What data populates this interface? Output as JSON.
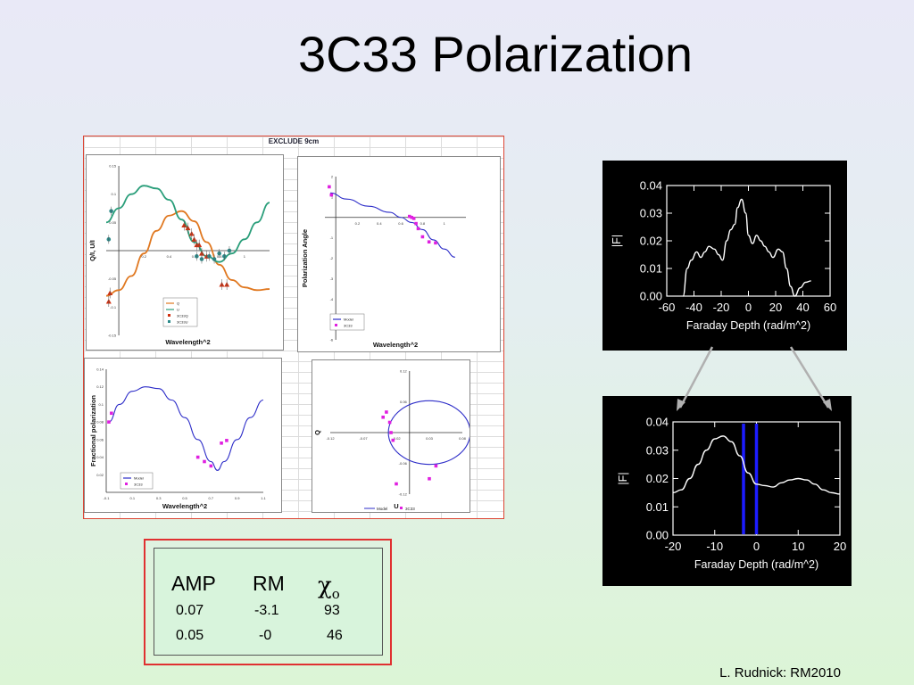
{
  "slide": {
    "title": "3C33 Polarization",
    "credit": "L. Rudnick:  RM2010",
    "excel_header": "EXCLUDE 9cm"
  },
  "colors": {
    "model_q": "#e07820",
    "model_u": "#2a9e7a",
    "data_q": "#d03010",
    "data_u": "#2a8a8a",
    "model_blue": "#2c2cc8",
    "magenta": "#e020e0",
    "frame_red": "#e03030"
  },
  "params": {
    "headers": {
      "amp": "AMP",
      "rm": "RM",
      "chi": "χ",
      "chi_sub": "o"
    },
    "rows": [
      {
        "amp": "0.07",
        "rm": "-3.1",
        "chi": "93"
      },
      {
        "amp": "0.05",
        "rm": "-0",
        "chi": "46"
      }
    ]
  },
  "chart_data": [
    {
      "type": "line",
      "panel": "Q/I, U/I vs wavelength^2",
      "xlabel": "Wavelength^2",
      "ylabel": "Q/I, U/I",
      "xlim": [
        -0.1,
        1.2
      ],
      "ylim": [
        -0.15,
        0.15
      ],
      "xticks": [
        "0.2",
        "0.4",
        "0.6",
        "0.8",
        "1"
      ],
      "yticks": [
        "0.15",
        "0.1",
        "0.05",
        "-0.05",
        "-0.1",
        "-0.15"
      ],
      "legend": [
        "Q",
        "U",
        "3C33Q",
        "3C33U"
      ],
      "series": [
        {
          "name": "Q",
          "kind": "model",
          "x": [
            -0.1,
            0.0,
            0.1,
            0.2,
            0.3,
            0.4,
            0.5,
            0.6,
            0.7,
            0.8,
            0.9,
            1.0,
            1.1,
            1.2
          ],
          "y": [
            -0.08,
            -0.07,
            -0.045,
            -0.005,
            0.035,
            0.062,
            0.07,
            0.052,
            0.015,
            -0.025,
            -0.052,
            -0.065,
            -0.07,
            -0.068
          ]
        },
        {
          "name": "U",
          "kind": "model",
          "x": [
            -0.1,
            0.0,
            0.1,
            0.2,
            0.3,
            0.4,
            0.5,
            0.6,
            0.7,
            0.8,
            0.9,
            1.0,
            1.1,
            1.2
          ],
          "y": [
            0.05,
            0.075,
            0.1,
            0.115,
            0.11,
            0.09,
            0.055,
            0.015,
            -0.01,
            -0.02,
            -0.005,
            0.02,
            0.05,
            0.085
          ]
        },
        {
          "name": "3C33Q",
          "kind": "points",
          "x": [
            -0.08,
            -0.07,
            0.52,
            0.55,
            0.58,
            0.6,
            0.62,
            0.64,
            0.66,
            0.7,
            0.82,
            0.86
          ],
          "y": [
            -0.09,
            -0.075,
            0.045,
            0.04,
            0.03,
            0.02,
            0.01,
            0.01,
            -0.005,
            -0.01,
            -0.06,
            -0.06
          ]
        },
        {
          "name": "3C33U",
          "kind": "points",
          "x": [
            -0.08,
            -0.06,
            0.62,
            0.66,
            0.72,
            0.76,
            0.8,
            0.84,
            0.88
          ],
          "y": [
            0.02,
            0.07,
            -0.01,
            -0.015,
            -0.01,
            -0.015,
            -0.005,
            -0.01,
            0.0
          ]
        }
      ]
    },
    {
      "type": "line",
      "panel": "Polarization angle vs wavelength^2",
      "xlabel": "Wavelength^2",
      "ylabel": "Polarization Angle",
      "xlim": [
        -0.1,
        1.2
      ],
      "ylim": [
        -6,
        2
      ],
      "yticks": [
        "2",
        "1",
        "-1",
        "-2",
        "-3",
        "-4",
        "-5",
        "-6"
      ],
      "xticks": [
        "0.2",
        "0.4",
        "0.6",
        "0.8",
        "1"
      ],
      "legend": [
        "Model",
        "3C33"
      ],
      "series": [
        {
          "name": "Model",
          "kind": "model",
          "x": [
            -0.05,
            0.1,
            0.3,
            0.5,
            0.6,
            0.7,
            0.8,
            0.9,
            1.0,
            1.1
          ],
          "y": [
            1.2,
            0.9,
            0.55,
            0.25,
            0.0,
            -0.25,
            -0.6,
            -1.1,
            -1.55,
            -1.95
          ]
        },
        {
          "name": "3C33",
          "kind": "points",
          "x": [
            -0.06,
            -0.04,
            0.68,
            0.7,
            0.72,
            0.74,
            0.76,
            0.8,
            0.86,
            0.92
          ],
          "y": [
            1.5,
            1.1,
            0.05,
            0.0,
            -0.05,
            -0.3,
            -0.55,
            -0.95,
            -1.2,
            -1.25
          ]
        }
      ]
    },
    {
      "type": "line",
      "panel": "Fractional polarization vs wavelength^2",
      "xlabel": "Wavelength^2",
      "ylabel": "Fractional polarization",
      "xlim": [
        -0.1,
        1.1
      ],
      "ylim": [
        0,
        0.14
      ],
      "xticks": [
        "-0.1",
        "0.1",
        "0.3",
        "0.5",
        "0.7",
        "0.9",
        "1.1"
      ],
      "yticks": [
        "0.14",
        "0.12",
        "0.1",
        "0.08",
        "0.06",
        "0.04",
        "0.02"
      ],
      "legend": [
        "Model",
        "3C33"
      ],
      "series": [
        {
          "name": "Model",
          "kind": "model",
          "x": [
            -0.08,
            0.0,
            0.1,
            0.2,
            0.3,
            0.4,
            0.5,
            0.6,
            0.7,
            0.75,
            0.8,
            0.9,
            1.0,
            1.1
          ],
          "y": [
            0.08,
            0.1,
            0.115,
            0.12,
            0.118,
            0.105,
            0.085,
            0.06,
            0.035,
            0.025,
            0.035,
            0.06,
            0.085,
            0.105
          ]
        },
        {
          "name": "3C33",
          "kind": "points",
          "x": [
            -0.08,
            -0.06,
            0.6,
            0.65,
            0.7,
            0.78,
            0.82
          ],
          "y": [
            0.08,
            0.09,
            0.04,
            0.035,
            0.03,
            0.056,
            0.059
          ]
        }
      ]
    },
    {
      "type": "scatter",
      "panel": "Q vs U",
      "xlabel": "U",
      "ylabel": "Q",
      "xlim": [
        -0.12,
        0.08
      ],
      "ylim": [
        -0.12,
        0.12
      ],
      "xticks": [
        "-0.12",
        "-0.07",
        "-0.02",
        "0.03",
        "0.08"
      ],
      "yticks": [
        "0.12",
        "0.06",
        "-0.06",
        "-0.12"
      ],
      "legend": [
        "Model",
        "3C33"
      ],
      "series": [
        {
          "name": "Model",
          "kind": "circle",
          "center": [
            0.03,
            0.0
          ],
          "radius": 0.062
        },
        {
          "name": "3C33",
          "kind": "points",
          "x": [
            -0.04,
            -0.035,
            -0.03,
            -0.028,
            -0.025,
            -0.02,
            0.03,
            0.04
          ],
          "y": [
            0.03,
            0.04,
            0.02,
            0.0,
            -0.015,
            -0.1,
            -0.09,
            -0.065
          ]
        }
      ]
    },
    {
      "type": "line",
      "panel": "Faraday spectrum wide",
      "xlabel": "Faraday Depth (rad/m^2)",
      "ylabel": "|F|",
      "xlim": [
        -60,
        60
      ],
      "ylim": [
        0,
        0.04
      ],
      "xticks": [
        "-60",
        "-40",
        "-20",
        "0",
        "20",
        "40",
        "60"
      ],
      "yticks": [
        "0.04",
        "0.03",
        "0.02",
        "0.01",
        "0.00"
      ],
      "series": [
        {
          "name": "|F|",
          "x": [
            -48,
            -45,
            -42,
            -38,
            -35,
            -32,
            -29,
            -25,
            -22,
            -19,
            -16,
            -13,
            -10,
            -8,
            -5,
            -2,
            0,
            3,
            6,
            9,
            12,
            15,
            18,
            22,
            25,
            28,
            31,
            34,
            38,
            42,
            46
          ],
          "y": [
            0.0,
            0.01,
            0.013,
            0.016,
            0.014,
            0.016,
            0.018,
            0.017,
            0.015,
            0.013,
            0.02,
            0.024,
            0.026,
            0.032,
            0.035,
            0.03,
            0.022,
            0.019,
            0.022,
            0.02,
            0.018,
            0.016,
            0.014,
            0.017,
            0.016,
            0.01,
            0.0035,
            0.0,
            0.003,
            0.005,
            0.0055
          ]
        }
      ]
    },
    {
      "type": "line",
      "panel": "Faraday spectrum zoom",
      "xlabel": "Faraday Depth (rad/m^2)",
      "ylabel": "|F|",
      "xlim": [
        -20,
        20
      ],
      "ylim": [
        0,
        0.04
      ],
      "xticks": [
        "-20",
        "-10",
        "0",
        "10",
        "20"
      ],
      "yticks": [
        "0.04",
        "0.03",
        "0.02",
        "0.01",
        "0.00"
      ],
      "markers": [
        -3.1,
        0.0
      ],
      "series": [
        {
          "name": "|F|",
          "x": [
            -20,
            -18,
            -16,
            -14,
            -12,
            -10,
            -8,
            -6,
            -4,
            -2,
            0,
            2,
            4,
            6,
            8,
            10,
            12,
            14,
            16,
            18,
            20
          ],
          "y": [
            0.015,
            0.016,
            0.02,
            0.025,
            0.03,
            0.034,
            0.035,
            0.033,
            0.028,
            0.022,
            0.018,
            0.0175,
            0.017,
            0.0185,
            0.0195,
            0.02,
            0.0195,
            0.018,
            0.016,
            0.015,
            0.0145
          ]
        }
      ]
    }
  ]
}
